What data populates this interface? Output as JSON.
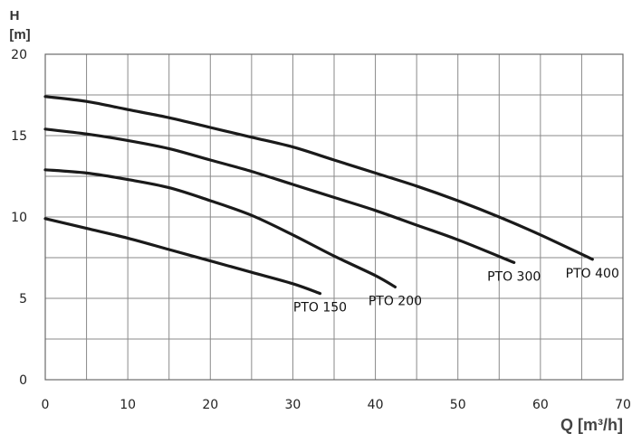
{
  "chart_data": {
    "type": "line",
    "title": "",
    "ylabel_line1": "H",
    "ylabel_line2": "[m]",
    "xlabel": "Q [m³/h]",
    "xlim": [
      0,
      70
    ],
    "ylim": [
      0,
      20
    ],
    "x_ticks": [
      "0",
      "10",
      "20",
      "30",
      "40",
      "50",
      "60",
      "70"
    ],
    "y_ticks": [
      "0",
      "5",
      "10",
      "15",
      "20"
    ],
    "grid": true,
    "line_color": "#1a1a1a",
    "series": [
      {
        "name": "PTO 150",
        "x": [
          0,
          5,
          10,
          15,
          20,
          25,
          30,
          33.3
        ],
        "y": [
          9.9,
          9.3,
          8.7,
          8.0,
          7.3,
          6.6,
          5.9,
          5.3
        ]
      },
      {
        "name": "PTO 200",
        "x": [
          0,
          5,
          10,
          15,
          20,
          25,
          30,
          35,
          40,
          42.4
        ],
        "y": [
          12.9,
          12.7,
          12.3,
          11.8,
          11.0,
          10.1,
          8.9,
          7.6,
          6.4,
          5.7
        ]
      },
      {
        "name": "PTO 300",
        "x": [
          0,
          5,
          10,
          15,
          20,
          25,
          30,
          35,
          40,
          45,
          50,
          56.8
        ],
        "y": [
          15.4,
          15.1,
          14.7,
          14.2,
          13.5,
          12.8,
          12.0,
          11.2,
          10.4,
          9.5,
          8.6,
          7.2
        ]
      },
      {
        "name": "PTO 400",
        "x": [
          0,
          5,
          10,
          15,
          20,
          25,
          30,
          35,
          40,
          45,
          50,
          55,
          60,
          66.3
        ],
        "y": [
          17.4,
          17.1,
          16.6,
          16.1,
          15.5,
          14.9,
          14.3,
          13.5,
          12.7,
          11.9,
          11.0,
          10.0,
          8.9,
          7.4
        ]
      }
    ]
  }
}
